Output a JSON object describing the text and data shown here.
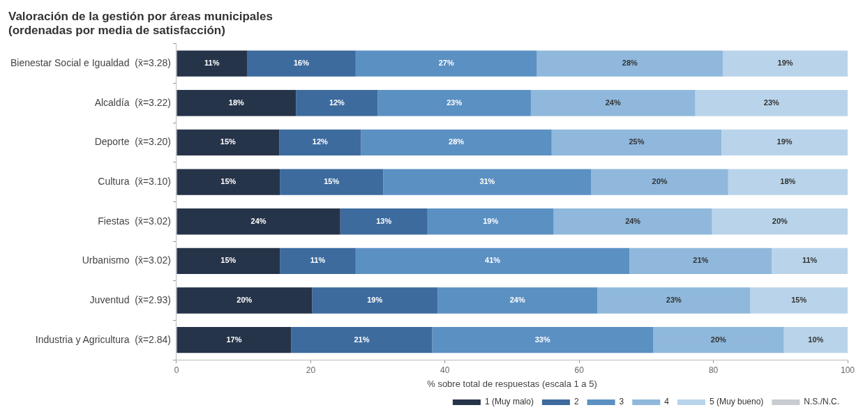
{
  "chart_data": {
    "type": "bar",
    "orientation": "horizontal",
    "stacked": true,
    "title": "Valoración de la gestión por áreas municipales\n(ordenadas por media de satisfacción)",
    "xlabel": "% sobre total de respuestas (escala 1 a 5)",
    "categories": [
      "Bienestar Social e Igualdad  (x̄=3.28)",
      "Alcaldía  (x̄=3.22)",
      "Deporte  (x̄=3.20)",
      "Cultura  (x̄=3.10)",
      "Fiestas  (x̄=3.02)",
      "Urbanismo  (x̄=3.02)",
      "Juventud  (x̄=2.93)",
      "Industria y Agricultura  (x̄=2.84)"
    ],
    "series": [
      {
        "name": "1 (Muy malo)",
        "color": "#26344a",
        "values": [
          10.5,
          17.8,
          15.3,
          15.4,
          24.4,
          15.4,
          20.2,
          17.1
        ],
        "value_labels": [
          "11%",
          "18%",
          "15%",
          "15%",
          "24%",
          "15%",
          "20%",
          "17%"
        ]
      },
      {
        "name": "2",
        "color": "#3d6b9e",
        "values": [
          16.2,
          12.2,
          12.2,
          15.4,
          13.0,
          11.3,
          18.7,
          21.0
        ],
        "value_labels": [
          "16%",
          "12%",
          "12%",
          "15%",
          "13%",
          "11%",
          "19%",
          "21%"
        ]
      },
      {
        "name": "3",
        "color": "#5b90c2",
        "values": [
          27.0,
          22.8,
          28.4,
          31.0,
          18.8,
          40.8,
          23.8,
          32.9
        ],
        "value_labels": [
          "27%",
          "23%",
          "28%",
          "31%",
          "19%",
          "41%",
          "24%",
          "33%"
        ]
      },
      {
        "name": "4",
        "color": "#8fb8dc",
        "values": [
          27.7,
          24.5,
          25.3,
          20.4,
          23.6,
          21.2,
          22.8,
          19.5
        ],
        "value_labels": [
          "28%",
          "24%",
          "25%",
          "20%",
          "24%",
          "21%",
          "23%",
          "20%"
        ]
      },
      {
        "name": "5 (Muy bueno)",
        "color": "#b9d4ea",
        "values": [
          18.6,
          22.7,
          18.8,
          17.8,
          20.2,
          11.3,
          14.5,
          9.5
        ],
        "value_labels": [
          "19%",
          "23%",
          "19%",
          "18%",
          "20%",
          "11%",
          "15%",
          "10%"
        ]
      },
      {
        "name": "N.S./N.C.",
        "color": "#c8ccd0",
        "values": [
          null,
          null,
          null,
          null,
          null,
          null,
          null,
          null
        ]
      }
    ],
    "xlim": [
      0,
      100
    ],
    "xticks": [
      0,
      20,
      40,
      60,
      80,
      100
    ],
    "grid": false,
    "legend": "bottom"
  }
}
